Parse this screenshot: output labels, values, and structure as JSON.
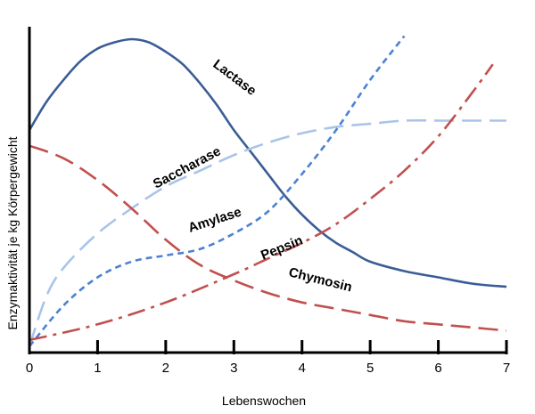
{
  "chart_data": {
    "type": "line",
    "title": "",
    "xlabel": "Lebenswochen",
    "ylabel": "Enzymaktivität je kg Körpergewicht",
    "xlim": [
      0,
      7
    ],
    "ylim": [
      0,
      100
    ],
    "x_ticks": [
      "0",
      "1",
      "2",
      "3",
      "4",
      "5",
      "6",
      "7"
    ],
    "grid": false,
    "legend": "none",
    "series": [
      {
        "name": "Lactase",
        "color": "#3a5d96",
        "dash": "solid",
        "x": [
          0,
          0.25,
          0.5,
          0.75,
          1.0,
          1.25,
          1.5,
          1.75,
          2.0,
          2.25,
          2.5,
          2.75,
          3.0,
          3.25,
          3.5,
          3.75,
          4.0,
          4.25,
          4.5,
          4.75,
          5.0,
          5.5,
          6.0,
          6.5,
          7.0
        ],
        "y": [
          71,
          80,
          87,
          93,
          97,
          99,
          100,
          99,
          96,
          92,
          86,
          79,
          71,
          64,
          57,
          50,
          44,
          39,
          35,
          32,
          29,
          26,
          24,
          22,
          21
        ]
      },
      {
        "name": "Saccharase",
        "color": "#a9c4e8",
        "dash": "long-dash",
        "x": [
          0,
          0.25,
          0.5,
          1.0,
          1.5,
          2.0,
          2.5,
          3.0,
          3.5,
          4.0,
          4.5,
          5.0,
          5.5,
          6.0,
          6.5,
          7.0
        ],
        "y": [
          2,
          18,
          27,
          38,
          46,
          53,
          58,
          63,
          67,
          70,
          72,
          73,
          74,
          74,
          74,
          74
        ]
      },
      {
        "name": "Amylase",
        "color": "#4b82d2",
        "dash": "dash",
        "x": [
          0,
          0.5,
          1.0,
          1.5,
          2.0,
          2.5,
          3.0,
          3.5,
          4.0,
          4.5,
          5.0,
          5.5
        ],
        "y": [
          2,
          15,
          24,
          29,
          31,
          33,
          38,
          45,
          57,
          71,
          87,
          101
        ]
      },
      {
        "name": "Pepsin",
        "color": "#c0504d",
        "dash": "dash-dot",
        "x": [
          0,
          1,
          2,
          3,
          3.5,
          4,
          4.5,
          5,
          5.5,
          6,
          6.5,
          6.8
        ],
        "y": [
          4,
          9,
          16,
          25,
          30,
          35,
          41,
          49,
          58,
          69,
          83,
          92
        ]
      },
      {
        "name": "Chymosin",
        "color": "#c0504d",
        "dash": "long-dash",
        "x": [
          0,
          0.5,
          1.0,
          1.5,
          2.0,
          2.5,
          3.0,
          3.5,
          4.0,
          4.5,
          5.0,
          5.5,
          6.0,
          6.5,
          7.0
        ],
        "y": [
          66,
          62,
          55,
          46,
          36,
          28,
          23,
          19,
          16,
          14,
          12,
          10,
          9,
          8,
          7
        ]
      }
    ]
  }
}
